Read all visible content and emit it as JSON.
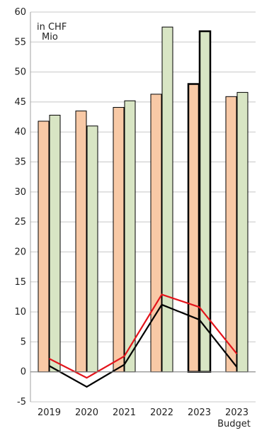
{
  "chart_data": {
    "type": "bar",
    "unit_label": [
      "in CHF",
      "Mio"
    ],
    "categories": [
      {
        "label": "2019",
        "sublabel": ""
      },
      {
        "label": "2020",
        "sublabel": ""
      },
      {
        "label": "2021",
        "sublabel": ""
      },
      {
        "label": "2022",
        "sublabel": ""
      },
      {
        "label": "2023",
        "sublabel": ""
      },
      {
        "label": "2023",
        "sublabel": "Budget"
      }
    ],
    "highlight_category_index": 4,
    "y_axis": {
      "min": -5,
      "max": 60,
      "step": 5,
      "grid": true
    },
    "bar_series": [
      {
        "color": "#F8C9A6",
        "values": [
          41.8,
          43.5,
          44.1,
          46.3,
          48.0,
          45.9
        ]
      },
      {
        "color": "#D8E5C4",
        "values": [
          42.8,
          41.0,
          45.2,
          57.5,
          56.8,
          46.6
        ]
      }
    ],
    "line_series": [
      {
        "color": "#E3141B",
        "values": [
          2.2,
          -1.0,
          2.6,
          12.9,
          10.8,
          3.0
        ]
      },
      {
        "color": "#000000",
        "values": [
          1.0,
          -2.5,
          1.2,
          11.2,
          8.7,
          0.8
        ]
      }
    ]
  }
}
